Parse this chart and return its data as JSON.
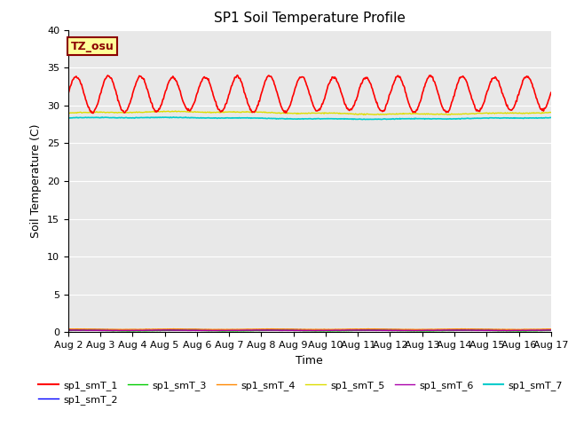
{
  "title": "SP1 Soil Temperature Profile",
  "xlabel": "Time",
  "ylabel": "Soil Temperature (C)",
  "ylim": [
    0,
    40
  ],
  "ytick_values": [
    0,
    5,
    10,
    15,
    20,
    25,
    30,
    35,
    40
  ],
  "xtick_labels": [
    "Aug 2",
    "Aug 3",
    "Aug 4",
    "Aug 5",
    "Aug 6",
    "Aug 7",
    "Aug 8",
    "Aug 9",
    "Aug 10",
    "Aug 11",
    "Aug 12",
    "Aug 13",
    "Aug 14",
    "Aug 15",
    "Aug 16",
    "Aug 17"
  ],
  "bg_color": "#e8e8e8",
  "annotation_text": "TZ_osu",
  "annotation_bg": "#ffff99",
  "annotation_border": "#8b0000",
  "series_order": [
    "sp1_smT_1",
    "sp1_smT_2",
    "sp1_smT_3",
    "sp1_smT_4",
    "sp1_smT_5",
    "sp1_smT_6",
    "sp1_smT_7"
  ],
  "series_colors": {
    "sp1_smT_1": "#ff0000",
    "sp1_smT_2": "#0000ff",
    "sp1_smT_3": "#00cc00",
    "sp1_smT_4": "#ff8800",
    "sp1_smT_5": "#dddd00",
    "sp1_smT_6": "#aa00aa",
    "sp1_smT_7": "#00cccc"
  },
  "series_lw": {
    "sp1_smT_1": 1.2,
    "sp1_smT_2": 1.0,
    "sp1_smT_3": 1.0,
    "sp1_smT_4": 1.0,
    "sp1_smT_5": 1.0,
    "sp1_smT_6": 1.0,
    "sp1_smT_7": 1.2
  },
  "t1_base": 31.5,
  "t1_amplitude": 2.3,
  "t5_base": 29.0,
  "t7_base": 28.3,
  "low_base": 0.3,
  "days": 15,
  "grid_color": "#ffffff",
  "title_fontsize": 11,
  "axis_label_fontsize": 9,
  "tick_fontsize": 8
}
